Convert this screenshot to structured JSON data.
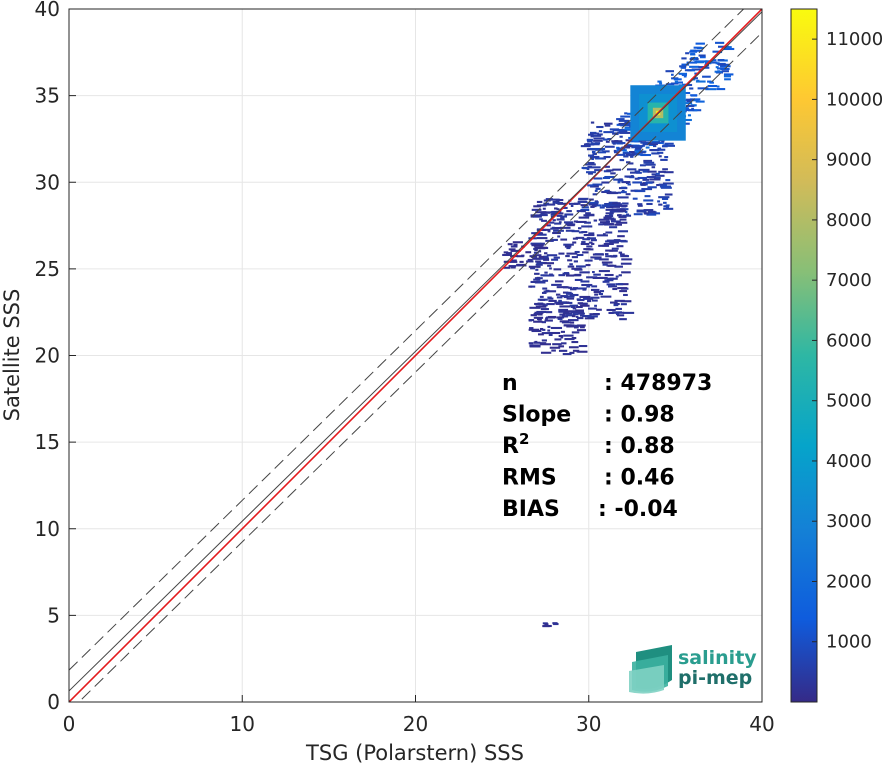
{
  "chart_data": {
    "type": "heatmap",
    "xlabel": "TSG (Polarstern) SSS",
    "ylabel": "Satellite SSS",
    "xlim": [
      0,
      40
    ],
    "ylim": [
      0,
      40
    ],
    "x_ticks": [
      "0",
      "10",
      "20",
      "30",
      "40"
    ],
    "y_ticks": [
      "0",
      "5",
      "10",
      "15",
      "20",
      "25",
      "30",
      "35",
      "40"
    ],
    "grid": true,
    "colorbar": {
      "colormap": "parula",
      "range": [
        0,
        11500
      ],
      "ticks": [
        "1000",
        "2000",
        "3000",
        "4000",
        "5000",
        "6000",
        "7000",
        "8000",
        "9000",
        "10000",
        "11000"
      ]
    },
    "lines": [
      {
        "name": "identity",
        "slope": 1,
        "intercept": 0,
        "color": "#e41a1c",
        "style": "solid"
      },
      {
        "name": "regression",
        "slope": 0.98,
        "intercept": 0.64,
        "color": "#444444",
        "style": "solid"
      },
      {
        "name": "upper bound",
        "slope": 0.98,
        "intercept": 1.84,
        "color": "#444444",
        "style": "dashed"
      },
      {
        "name": "lower bound",
        "slope": 0.98,
        "intercept": -0.56,
        "color": "#444444",
        "style": "dashed"
      }
    ],
    "density_core": {
      "x": 34,
      "y": 34,
      "peak_count": 11000
    },
    "density_regions": [
      {
        "x": [
          31.5,
          38
        ],
        "y": [
          31.5,
          38
        ],
        "count": 1500
      },
      {
        "x": [
          29.5,
          34.5
        ],
        "y": [
          28,
          33.5
        ],
        "count": 600
      },
      {
        "x": [
          26.5,
          32
        ],
        "y": [
          22,
          29
        ],
        "count": 300
      },
      {
        "x": [
          26.5,
          29.5
        ],
        "y": [
          20,
          23
        ],
        "count": 200
      },
      {
        "x": [
          25,
          27.5
        ],
        "y": [
          25,
          26.5
        ],
        "count": 150
      },
      {
        "x": [
          27,
          28
        ],
        "y": [
          4.3,
          4.5
        ],
        "count": 200
      }
    ],
    "stats": [
      {
        "label": "n",
        "value": ": 478973"
      },
      {
        "label": "Slope",
        "value": ": 0.98"
      },
      {
        "label": "R",
        "sup": "2",
        "value": ": 0.88"
      },
      {
        "label": "RMS",
        "value": ": 0.46"
      },
      {
        "label": "BIAS",
        "value": ": -0.04"
      }
    ]
  },
  "logo": {
    "line1": "salinity",
    "line2": "pi-mep"
  }
}
